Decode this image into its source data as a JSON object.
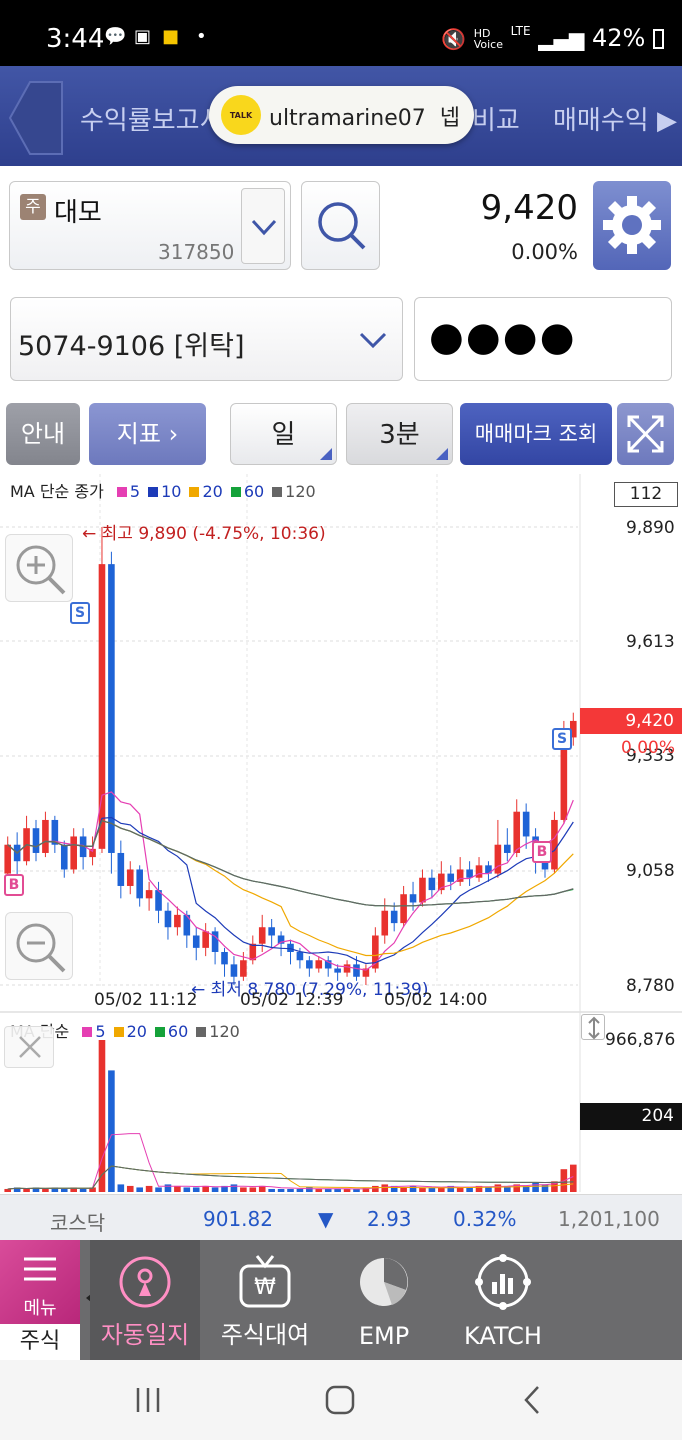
{
  "status_bar": {
    "time": "3:44",
    "hd": "HD",
    "voice": "Voice",
    "lte": "LTE",
    "battery": "42%"
  },
  "top_nav": {
    "left_text": "수익률보고서",
    "kakao_user": "ultramarine07",
    "kakao_suffix": "넵",
    "mid_text": "비교",
    "right_text": "매매수익 ▶",
    "kakao_logo_text": "TALK"
  },
  "stock": {
    "badge": "주",
    "name": "대모",
    "code": "317850",
    "price": "9,420",
    "change_pct": "0.00%"
  },
  "account": {
    "number": "5074-9106 [위탁]",
    "password_mask": "●●●●"
  },
  "toolbar": {
    "guide": "안내",
    "indicator": "지표 ›",
    "period": "일",
    "interval": "3분",
    "trade_mark": "매매마크 조회"
  },
  "price_chart": {
    "legend_prefix": "MA 단순 종가",
    "legend": [
      {
        "label": "5",
        "color": "#e53fb3"
      },
      {
        "label": "10",
        "color": "#1d3bb8"
      },
      {
        "label": "20",
        "color": "#f0a800"
      },
      {
        "label": "60",
        "color": "#15a23a"
      },
      {
        "label": "120",
        "color": "#666666"
      }
    ],
    "count_box": "112",
    "y_labels": [
      "9,890",
      "9,613",
      "9,333",
      "9,058",
      "8,780"
    ],
    "current_price": "9,420",
    "current_pct": "0.00%",
    "high_note": "← 최고 9,890 (-4.75%, 10:36)",
    "low_note": "← 최저 8,780 (7.29%, 11:39)",
    "x_labels": [
      "05/02 11:12",
      "05/02 12:39",
      "05/02 14:00"
    ],
    "mark_sell": "S",
    "mark_buy": "B"
  },
  "volume_chart": {
    "legend_prefix": "MA 단순",
    "legend": [
      {
        "label": "5",
        "color": "#e53fb3"
      },
      {
        "label": "20",
        "color": "#f0a800"
      },
      {
        "label": "60",
        "color": "#15a23a"
      },
      {
        "label": "120",
        "color": "#666666"
      }
    ],
    "max_label": "966,876",
    "count_box": "204"
  },
  "chart_data": {
    "type": "candlestick",
    "interval": "3분",
    "y_range": [
      8780,
      9890
    ],
    "high": 9890,
    "low": 8780,
    "last": 9420,
    "candles": [
      [
        9050,
        9120,
        9000,
        9140
      ],
      [
        9120,
        9080,
        9040,
        9150
      ],
      [
        9080,
        9160,
        9070,
        9190
      ],
      [
        9160,
        9100,
        9080,
        9180
      ],
      [
        9100,
        9180,
        9090,
        9200
      ],
      [
        9180,
        9120,
        9100,
        9190
      ],
      [
        9120,
        9060,
        9040,
        9130
      ],
      [
        9060,
        9140,
        9050,
        9160
      ],
      [
        9140,
        9090,
        9060,
        9160
      ],
      [
        9090,
        9110,
        9070,
        9140
      ],
      [
        9110,
        9800,
        9100,
        9890
      ],
      [
        9800,
        9100,
        9050,
        9830
      ],
      [
        9100,
        9020,
        8990,
        9130
      ],
      [
        9020,
        9060,
        9000,
        9080
      ],
      [
        9060,
        8990,
        8970,
        9070
      ],
      [
        8990,
        9010,
        8960,
        9030
      ],
      [
        9010,
        8960,
        8930,
        9030
      ],
      [
        8960,
        8920,
        8890,
        8980
      ],
      [
        8920,
        8950,
        8900,
        8970
      ],
      [
        8950,
        8900,
        8870,
        8960
      ],
      [
        8900,
        8870,
        8840,
        8920
      ],
      [
        8870,
        8910,
        8850,
        8930
      ],
      [
        8910,
        8860,
        8830,
        8920
      ],
      [
        8860,
        8830,
        8800,
        8870
      ],
      [
        8830,
        8800,
        8780,
        8850
      ],
      [
        8800,
        8840,
        8790,
        8860
      ],
      [
        8840,
        8880,
        8830,
        8900
      ],
      [
        8880,
        8920,
        8860,
        8950
      ],
      [
        8920,
        8900,
        8870,
        8940
      ],
      [
        8900,
        8880,
        8850,
        8910
      ],
      [
        8880,
        8860,
        8830,
        8890
      ],
      [
        8860,
        8840,
        8820,
        8870
      ],
      [
        8840,
        8820,
        8800,
        8850
      ],
      [
        8820,
        8840,
        8810,
        8850
      ],
      [
        8840,
        8820,
        8800,
        8850
      ],
      [
        8820,
        8810,
        8790,
        8830
      ],
      [
        8810,
        8830,
        8800,
        8840
      ],
      [
        8830,
        8800,
        8790,
        8850
      ],
      [
        8800,
        8820,
        8780,
        8830
      ],
      [
        8820,
        8900,
        8810,
        8920
      ],
      [
        8900,
        8960,
        8880,
        8990
      ],
      [
        8960,
        8930,
        8910,
        8980
      ],
      [
        8930,
        9000,
        8920,
        9020
      ],
      [
        9000,
        8980,
        8960,
        9030
      ],
      [
        8980,
        9040,
        8970,
        9060
      ],
      [
        9040,
        9010,
        8990,
        9060
      ],
      [
        9010,
        9050,
        9000,
        9080
      ],
      [
        9050,
        9030,
        9010,
        9070
      ],
      [
        9030,
        9060,
        9020,
        9090
      ],
      [
        9060,
        9040,
        9020,
        9080
      ],
      [
        9040,
        9070,
        9030,
        9090
      ],
      [
        9070,
        9050,
        9030,
        9080
      ],
      [
        9050,
        9120,
        9040,
        9180
      ],
      [
        9120,
        9100,
        9080,
        9160
      ],
      [
        9100,
        9200,
        9090,
        9230
      ],
      [
        9200,
        9140,
        9110,
        9220
      ],
      [
        9140,
        9100,
        9050,
        9160
      ],
      [
        9100,
        9060,
        9040,
        9120
      ],
      [
        9060,
        9180,
        9050,
        9200
      ],
      [
        9180,
        9380,
        9170,
        9420
      ],
      [
        9380,
        9420,
        9360,
        9440
      ]
    ],
    "volume": [
      0.02,
      0.03,
      0.02,
      0.03,
      0.02,
      0.03,
      0.02,
      0.03,
      0.02,
      0.03,
      1.0,
      0.8,
      0.05,
      0.04,
      0.03,
      0.04,
      0.03,
      0.05,
      0.04,
      0.03,
      0.03,
      0.04,
      0.03,
      0.04,
      0.05,
      0.03,
      0.03,
      0.04,
      0.02,
      0.02,
      0.02,
      0.02,
      0.03,
      0.02,
      0.02,
      0.02,
      0.02,
      0.02,
      0.03,
      0.04,
      0.05,
      0.04,
      0.03,
      0.04,
      0.03,
      0.03,
      0.03,
      0.04,
      0.03,
      0.03,
      0.04,
      0.03,
      0.05,
      0.04,
      0.05,
      0.04,
      0.06,
      0.05,
      0.07,
      0.15,
      0.18
    ]
  },
  "index_bar": {
    "name": "코스닥",
    "value": "901.82",
    "arrow": "▼",
    "change": "2.93",
    "pct": "0.32%",
    "volume": "1,201,100"
  },
  "tab_bar": {
    "menu": "메뉴",
    "section": "주식",
    "tabs": [
      {
        "label": "자동일지",
        "icon": "diary-icon",
        "active": true
      },
      {
        "label": "주식대여",
        "icon": "won-tv-icon",
        "active": false
      },
      {
        "label": "EMP",
        "icon": "pie-chart-icon",
        "active": false
      },
      {
        "label": "KATCH",
        "icon": "network-chart-icon",
        "active": false
      }
    ]
  },
  "colors": {
    "up": "#e8322e",
    "down": "#1e63d6",
    "nav": "#34479a",
    "accent_pink": "#d94c9a"
  }
}
